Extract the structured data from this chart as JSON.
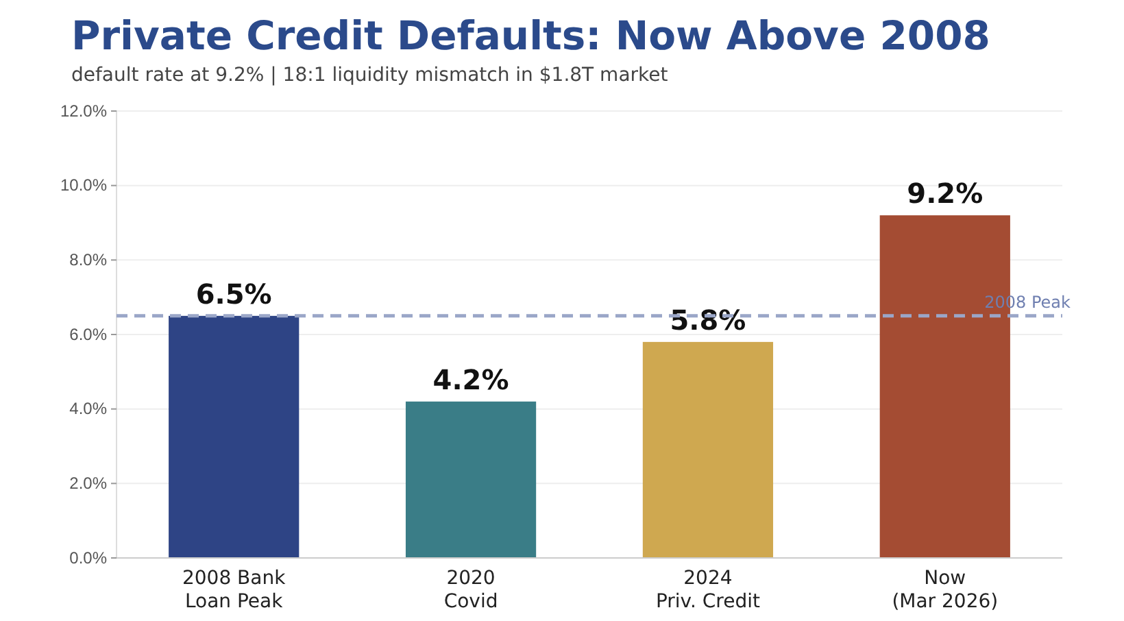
{
  "chart_data": {
    "type": "bar",
    "title": "Private Credit Defaults: Now Above 2008",
    "subtitle": "default rate at 9.2% | 18:1 liquidity mismatch in $1.8T market",
    "categories": [
      "2008 Bank\nLoan Peak",
      "2020\nCovid",
      "2024\nPriv. Credit",
      "Now\n(Mar 2026)"
    ],
    "values": [
      6.5,
      4.2,
      5.8,
      9.2
    ],
    "colors": [
      "#2e4485",
      "#3a7d87",
      "#cfa850",
      "#a44c33"
    ],
    "value_labels": [
      "6.5%",
      "4.2%",
      "5.8%",
      "9.2%"
    ],
    "ylim": [
      0,
      12
    ],
    "yticks": [
      {
        "value": 0,
        "label": "0.0%"
      },
      {
        "value": 2,
        "label": "2.0%"
      },
      {
        "value": 4,
        "label": "4.0%"
      },
      {
        "value": 6,
        "label": "6.0%"
      },
      {
        "value": 8,
        "label": "8.0%"
      },
      {
        "value": 10,
        "label": "10.0%"
      },
      {
        "value": 12,
        "label": "12.0%"
      }
    ],
    "grid": "y",
    "ref_lines": [
      {
        "axis": "y",
        "value": 6.5,
        "label": "2008 Peak",
        "color": "#9aa6c8",
        "line_style": "dashed"
      }
    ]
  }
}
